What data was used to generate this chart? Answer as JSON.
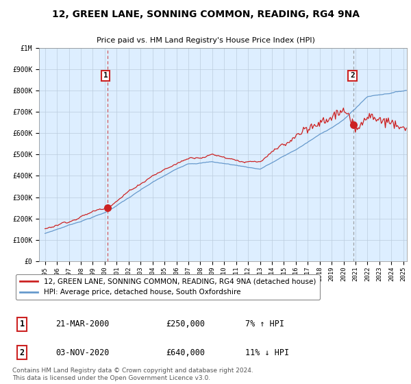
{
  "title": "12, GREEN LANE, SONNING COMMON, READING, RG4 9NA",
  "subtitle": "Price paid vs. HM Land Registry's House Price Index (HPI)",
  "ylim": [
    0,
    1000000
  ],
  "xlim_start": 1994.5,
  "xlim_end": 2025.3,
  "red_line_color": "#cc2222",
  "blue_line_color": "#6699cc",
  "chart_bg_color": "#ddeeff",
  "background_color": "#ffffff",
  "grid_color": "#bbccdd",
  "annotation1_label": "1",
  "annotation1_year": 2000.22,
  "annotation1_value": 250000,
  "annotation1_date": "21-MAR-2000",
  "annotation1_price": "£250,000",
  "annotation1_hpi": "7% ↑ HPI",
  "annotation2_label": "2",
  "annotation2_year": 2020.84,
  "annotation2_value": 640000,
  "annotation2_date": "03-NOV-2020",
  "annotation2_price": "£640,000",
  "annotation2_hpi": "11% ↓ HPI",
  "legend_label_red": "12, GREEN LANE, SONNING COMMON, READING, RG4 9NA (detached house)",
  "legend_label_blue": "HPI: Average price, detached house, South Oxfordshire",
  "footer_text": "Contains HM Land Registry data © Crown copyright and database right 2024.\nThis data is licensed under the Open Government Licence v3.0.",
  "yticks": [
    0,
    100000,
    200000,
    300000,
    400000,
    500000,
    600000,
    700000,
    800000,
    900000,
    1000000
  ],
  "ytick_labels": [
    "£0",
    "£100K",
    "£200K",
    "£300K",
    "£400K",
    "£500K",
    "£600K",
    "£700K",
    "£800K",
    "£900K",
    "£1M"
  ],
  "xticks": [
    1995,
    1996,
    1997,
    1998,
    1999,
    2000,
    2001,
    2002,
    2003,
    2004,
    2005,
    2006,
    2007,
    2008,
    2009,
    2010,
    2011,
    2012,
    2013,
    2014,
    2015,
    2016,
    2017,
    2018,
    2019,
    2020,
    2021,
    2022,
    2023,
    2024,
    2025
  ]
}
